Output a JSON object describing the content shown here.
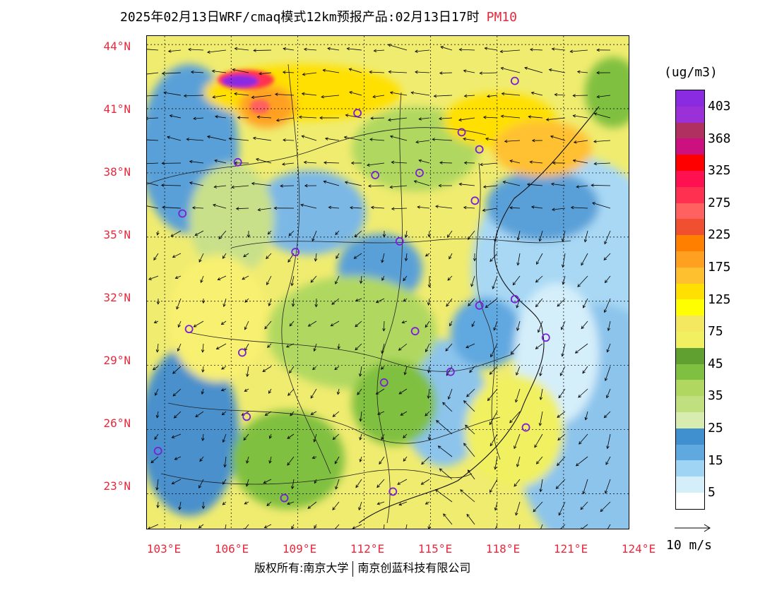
{
  "title": {
    "main": "2025年02月13日WRF/cmaq模式12km预报产品:02月13日17时",
    "pollutant": "PM10"
  },
  "units": "(ug/m3)",
  "lat_labels": [
    "44°N",
    "41°N",
    "38°N",
    "35°N",
    "32°N",
    "29°N",
    "26°N",
    "23°N"
  ],
  "lon_labels": [
    "103°E",
    "106°E",
    "109°E",
    "112°E",
    "115°E",
    "118°E",
    "121°E",
    "124°E"
  ],
  "legend": {
    "colors": [
      "#8a2be2",
      "#9b30d9",
      "#b03060",
      "#cc1080",
      "#ff0000",
      "#ff1050",
      "#ff3050",
      "#ff6060",
      "#f05030",
      "#ff8000",
      "#ffa020",
      "#ffc030",
      "#ffe000",
      "#ffff00",
      "#f4e860",
      "#f0f060",
      "#60a030",
      "#80c040",
      "#b0d860",
      "#c0e080",
      "#d8ecb0",
      "#4090d0",
      "#60a8e0",
      "#a0d4f4",
      "#d4eefa",
      "#ffffff"
    ],
    "labels": [
      "403",
      "368",
      "325",
      "275",
      "225",
      "175",
      "125",
      "75",
      "45",
      "35",
      "25",
      "15",
      "5"
    ]
  },
  "wind_scale_label": "10 m/s",
  "footer": {
    "left": "版权所有:南京大学",
    "right": "南京创蓝科技有限公司"
  },
  "cities": [
    {
      "lon": 118.8,
      "lat": 42.3
    },
    {
      "lon": 111.7,
      "lat": 40.8
    },
    {
      "lon": 116.4,
      "lat": 39.9
    },
    {
      "lon": 117.2,
      "lat": 39.1
    },
    {
      "lon": 106.3,
      "lat": 38.5
    },
    {
      "lon": 112.5,
      "lat": 37.9
    },
    {
      "lon": 114.5,
      "lat": 38.0
    },
    {
      "lon": 117.0,
      "lat": 36.7
    },
    {
      "lon": 103.8,
      "lat": 36.1
    },
    {
      "lon": 113.6,
      "lat": 34.8
    },
    {
      "lon": 108.9,
      "lat": 34.3
    },
    {
      "lon": 117.2,
      "lat": 31.8
    },
    {
      "lon": 118.8,
      "lat": 32.1
    },
    {
      "lon": 115.9,
      "lat": 28.7
    },
    {
      "lon": 114.3,
      "lat": 30.6
    },
    {
      "lon": 120.2,
      "lat": 30.3
    },
    {
      "lon": 104.1,
      "lat": 30.7
    },
    {
      "lon": 106.5,
      "lat": 29.6
    },
    {
      "lon": 112.9,
      "lat": 28.2
    },
    {
      "lon": 119.3,
      "lat": 26.1
    },
    {
      "lon": 106.7,
      "lat": 26.6
    },
    {
      "lon": 102.7,
      "lat": 25.0
    },
    {
      "lon": 108.4,
      "lat": 22.8
    },
    {
      "lon": 113.3,
      "lat": 23.1
    }
  ]
}
